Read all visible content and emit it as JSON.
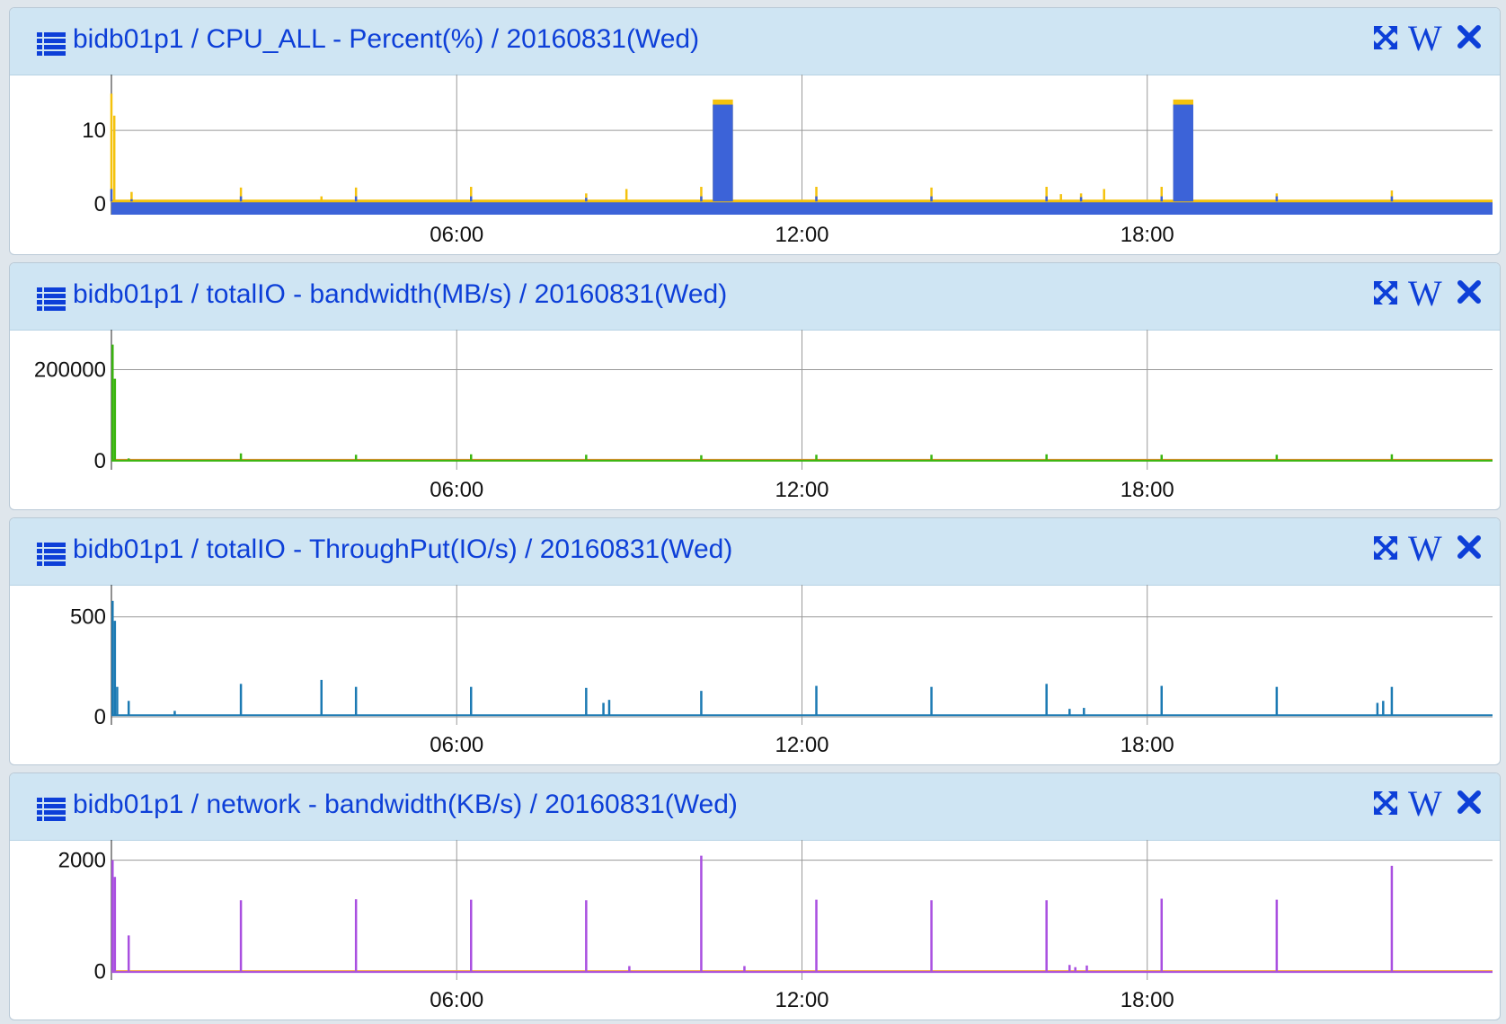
{
  "panels": [
    {
      "title": "bidb01p1 / CPU_ALL - Percent(%) / 20160831(Wed)",
      "tools": {
        "expand_icon": "expand-arrows-icon",
        "w_label": "W",
        "close_icon": "close-icon"
      },
      "chart_data": {
        "type": "area",
        "title": "bidb01p1 / CPU_ALL - Percent(%) / 20160831(Wed)",
        "xlabel": "",
        "ylabel": "",
        "x_unit": "hours",
        "xlim": [
          0,
          24
        ],
        "ylim": [
          -1.5,
          16.5
        ],
        "x_ticks": [
          6,
          12,
          18
        ],
        "x_tick_labels": [
          "06:00",
          "12:00",
          "18:00"
        ],
        "y_ticks": [
          0,
          10
        ],
        "y_tick_labels": [
          "0",
          "10"
        ],
        "grid": true,
        "baseline": 0.3,
        "series": [
          {
            "color": "#f4c20d",
            "spikes": [
              [
                0.0,
                15
              ],
              [
                0.05,
                12
              ],
              [
                0.35,
                1.6
              ],
              [
                2.25,
                2.2
              ],
              [
                3.65,
                1.0
              ],
              [
                4.25,
                2.2
              ],
              [
                6.25,
                2.3
              ],
              [
                8.25,
                1.4
              ],
              [
                8.95,
                2.0
              ],
              [
                10.25,
                2.3
              ],
              [
                12.25,
                2.3
              ],
              [
                14.25,
                2.2
              ],
              [
                16.25,
                2.3
              ],
              [
                16.5,
                1.3
              ],
              [
                16.85,
                1.4
              ],
              [
                17.25,
                2.0
              ],
              [
                18.25,
                2.3
              ],
              [
                20.25,
                1.4
              ],
              [
                22.25,
                1.8
              ]
            ],
            "blocks": [
              [
                10.45,
                10.8,
                14.2
              ],
              [
                18.45,
                18.8,
                14.2
              ]
            ]
          },
          {
            "color": "#3c63d8",
            "spikes": [
              [
                0.0,
                2.0
              ],
              [
                0.35,
                0.6
              ],
              [
                2.25,
                1.0
              ],
              [
                4.25,
                1.0
              ],
              [
                6.25,
                1.0
              ],
              [
                8.25,
                0.8
              ],
              [
                10.25,
                1.0
              ],
              [
                12.25,
                1.0
              ],
              [
                14.25,
                1.0
              ],
              [
                16.25,
                1.0
              ],
              [
                16.85,
                0.9
              ],
              [
                18.25,
                1.0
              ],
              [
                20.25,
                1.0
              ],
              [
                22.25,
                1.0
              ]
            ],
            "blocks": [
              [
                10.45,
                10.8,
                13.5
              ],
              [
                18.45,
                18.8,
                13.5
              ]
            ]
          }
        ]
      }
    },
    {
      "title": "bidb01p1 / totalIO - bandwidth(MB/s) / 20160831(Wed)",
      "tools": {
        "expand_icon": "expand-arrows-icon",
        "w_label": "W",
        "close_icon": "close-icon"
      },
      "chart_data": {
        "type": "line",
        "title": "bidb01p1 / totalIO - bandwidth(MB/s) / 20160831(Wed)",
        "xlabel": "",
        "ylabel": "",
        "x_unit": "hours",
        "xlim": [
          0,
          24
        ],
        "ylim": [
          -20000,
          270000
        ],
        "x_ticks": [
          6,
          12,
          18
        ],
        "x_tick_labels": [
          "06:00",
          "12:00",
          "18:00"
        ],
        "y_ticks": [
          0,
          200000
        ],
        "y_tick_labels": [
          "0",
          "200000"
        ],
        "grid": true,
        "baseline": 2000,
        "series": [
          {
            "color": "#e08a2b",
            "spikes": [],
            "blocks": []
          },
          {
            "color": "#3ab50f",
            "spikes": [
              [
                0.02,
                255000
              ],
              [
                0.06,
                180000
              ],
              [
                0.3,
                5000
              ],
              [
                2.25,
                16000
              ],
              [
                4.25,
                13000
              ],
              [
                6.25,
                14000
              ],
              [
                8.25,
                13000
              ],
              [
                10.25,
                12000
              ],
              [
                12.25,
                13000
              ],
              [
                14.25,
                13000
              ],
              [
                16.25,
                14000
              ],
              [
                18.25,
                13000
              ],
              [
                20.25,
                13000
              ],
              [
                22.25,
                14000
              ]
            ],
            "blocks": []
          }
        ]
      }
    },
    {
      "title": "bidb01p1 / totalIO - ThroughPut(IO/s) / 20160831(Wed)",
      "tools": {
        "expand_icon": "expand-arrows-icon",
        "w_label": "W",
        "close_icon": "close-icon"
      },
      "chart_data": {
        "type": "line",
        "title": "bidb01p1 / totalIO - ThroughPut(IO/s) / 20160831(Wed)",
        "xlabel": "",
        "ylabel": "",
        "x_unit": "hours",
        "xlim": [
          0,
          24
        ],
        "ylim": [
          -40,
          620
        ],
        "x_ticks": [
          6,
          12,
          18
        ],
        "x_tick_labels": [
          "06:00",
          "12:00",
          "18:00"
        ],
        "y_ticks": [
          0,
          500
        ],
        "y_tick_labels": [
          "0",
          "500"
        ],
        "grid": true,
        "baseline": 8,
        "series": [
          {
            "color": "#1c7ab3",
            "spikes": [
              [
                0.02,
                580
              ],
              [
                0.06,
                480
              ],
              [
                0.1,
                150
              ],
              [
                0.3,
                80
              ],
              [
                1.1,
                30
              ],
              [
                2.25,
                165
              ],
              [
                3.65,
                185
              ],
              [
                4.25,
                150
              ],
              [
                6.25,
                150
              ],
              [
                8.25,
                145
              ],
              [
                8.55,
                70
              ],
              [
                8.65,
                85
              ],
              [
                10.25,
                130
              ],
              [
                12.25,
                155
              ],
              [
                14.25,
                150
              ],
              [
                16.25,
                165
              ],
              [
                16.65,
                40
              ],
              [
                16.9,
                45
              ],
              [
                18.25,
                155
              ],
              [
                20.25,
                150
              ],
              [
                22.0,
                70
              ],
              [
                22.1,
                80
              ],
              [
                22.25,
                150
              ]
            ],
            "blocks": []
          }
        ]
      }
    },
    {
      "title": "bidb01p1 / network - bandwidth(KB/s) / 20160831(Wed)",
      "tools": {
        "expand_icon": "expand-arrows-icon",
        "w_label": "W",
        "close_icon": "close-icon"
      },
      "chart_data": {
        "type": "line",
        "title": "bidb01p1 / network - bandwidth(KB/s) / 20160831(Wed)",
        "xlabel": "",
        "ylabel": "",
        "x_unit": "hours",
        "xlim": [
          0,
          24
        ],
        "ylim": [
          -150,
          2220
        ],
        "x_ticks": [
          6,
          12,
          18
        ],
        "x_tick_labels": [
          "06:00",
          "12:00",
          "18:00"
        ],
        "y_ticks": [
          0,
          2000
        ],
        "y_tick_labels": [
          "0",
          "2000"
        ],
        "grid": true,
        "baseline": 10,
        "series": [
          {
            "color": "#f0a03c",
            "spikes": [],
            "blocks": []
          },
          {
            "color": "#a94fe0",
            "spikes": [
              [
                0.02,
                2000
              ],
              [
                0.06,
                1700
              ],
              [
                0.3,
                650
              ],
              [
                2.25,
                1280
              ],
              [
                4.25,
                1300
              ],
              [
                6.25,
                1290
              ],
              [
                8.25,
                1280
              ],
              [
                9.0,
                100
              ],
              [
                10.25,
                2080
              ],
              [
                11.0,
                100
              ],
              [
                12.25,
                1290
              ],
              [
                14.25,
                1280
              ],
              [
                16.25,
                1280
              ],
              [
                16.65,
                120
              ],
              [
                16.75,
                80
              ],
              [
                16.95,
                110
              ],
              [
                18.25,
                1310
              ],
              [
                20.25,
                1290
              ],
              [
                22.25,
                1900
              ]
            ],
            "blocks": []
          }
        ]
      }
    }
  ]
}
